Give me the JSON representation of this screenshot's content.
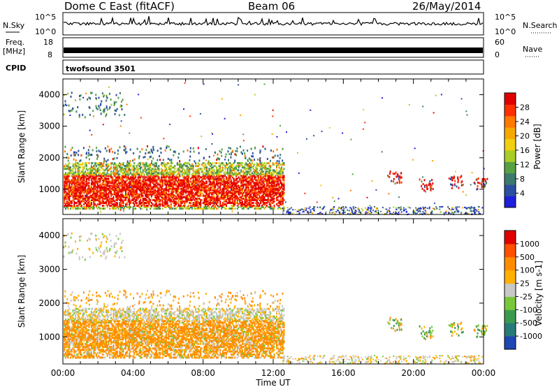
{
  "header": {
    "radar": "Dome C East (fitACF)",
    "beam": "Beam 06",
    "date": "26/May/2014"
  },
  "noise_panel": {
    "left_label": "N.Sky",
    "right_label": "N.Search",
    "left_ticks": [
      "10^5",
      "10^0"
    ],
    "right_ticks": [
      "10^5",
      "10^0"
    ]
  },
  "freq_panel": {
    "left_label_1": "Freq.",
    "left_label_2": "[MHz]",
    "left_ticks": [
      "18",
      "8"
    ],
    "right_label": "Nave",
    "right_ticks": [
      "60",
      "0"
    ]
  },
  "cpid_panel": {
    "label": "CPID",
    "value": "twofsound 3501"
  },
  "chart_data": [
    {
      "type": "heatmap",
      "name": "power",
      "ylabel": "Slant Range [km]",
      "yticks": [
        "4000",
        "3000",
        "2000",
        "1000"
      ],
      "ylim": [
        200,
        4500
      ],
      "xlim": [
        "00:00",
        "24:00"
      ],
      "colorbar": {
        "label": "Power [dB]",
        "tick_labels": [
          "28",
          "24",
          "20",
          "16",
          "12",
          "8",
          "4"
        ],
        "colors": [
          "#1e1edc",
          "#2d4fa0",
          "#3c7a6e",
          "#58a044",
          "#a8cc28",
          "#f0d010",
          "#f5a800",
          "#ff7800",
          "#ff3000",
          "#e00000"
        ]
      }
    },
    {
      "type": "heatmap",
      "name": "velocity",
      "ylabel": "Slant Range [km]",
      "yticks": [
        "4000",
        "3000",
        "2000",
        "1000"
      ],
      "ylim": [
        200,
        4500
      ],
      "xlim": [
        "00:00",
        "24:00"
      ],
      "colorbar": {
        "label": "Velocity [m s-1]",
        "tick_labels": [
          "1000",
          "500",
          "100",
          "25",
          "-25",
          "-100",
          "-500",
          "-1000"
        ],
        "colors": [
          "#1e46b4",
          "#287a78",
          "#3c9a50",
          "#78c83c",
          "#c8c8c8",
          "#ffb000",
          "#ff8c00",
          "#ff5000",
          "#e00000"
        ]
      }
    }
  ],
  "x_axis": {
    "ticks": [
      "00:00",
      "04:00",
      "08:00",
      "12:00",
      "16:00",
      "20:00",
      "00:00"
    ],
    "label": "Time UT"
  }
}
